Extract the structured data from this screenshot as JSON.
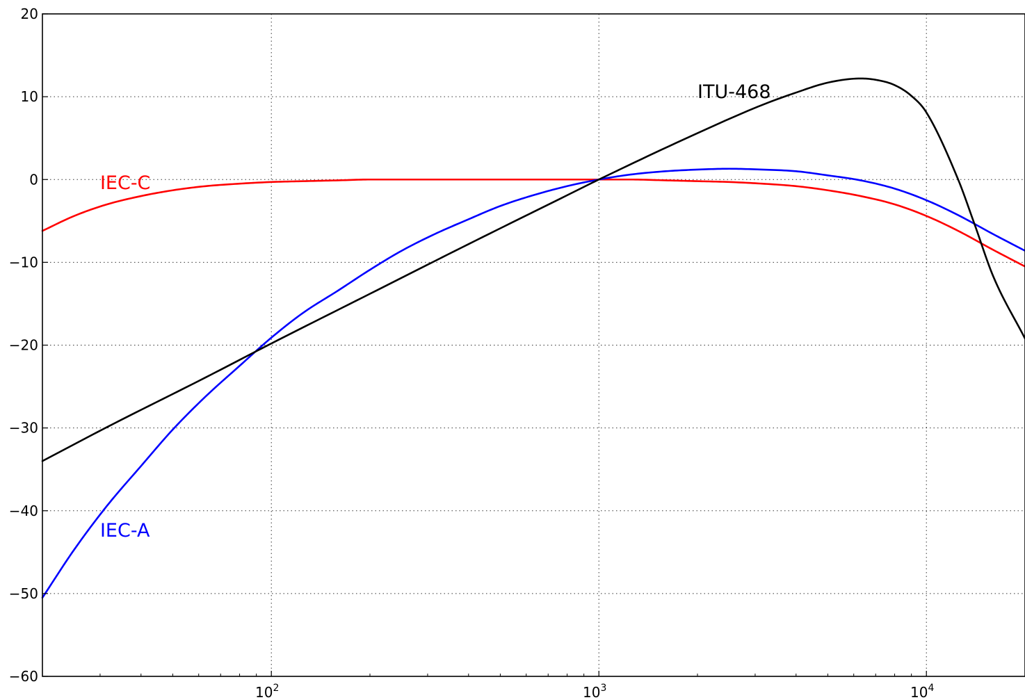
{
  "chart_data": {
    "type": "line",
    "title": "",
    "xlabel": "",
    "ylabel": "",
    "xscale": "log",
    "xlim": [
      20,
      20000
    ],
    "ylim": [
      -60,
      20
    ],
    "grid": true,
    "xticks": [
      {
        "value": 100,
        "base": "10",
        "exp": "2"
      },
      {
        "value": 1000,
        "base": "10",
        "exp": "3"
      },
      {
        "value": 10000,
        "base": "10",
        "exp": "4"
      }
    ],
    "yticks": [
      {
        "value": 20,
        "label": "20"
      },
      {
        "value": 10,
        "label": "10"
      },
      {
        "value": 0,
        "label": "0"
      },
      {
        "value": -10,
        "label": "−10"
      },
      {
        "value": -20,
        "label": "−20"
      },
      {
        "value": -30,
        "label": "−30"
      },
      {
        "value": -40,
        "label": "−40"
      },
      {
        "value": -50,
        "label": "−50"
      },
      {
        "value": -60,
        "label": "−60"
      }
    ],
    "series": [
      {
        "name": "IEC-C",
        "color": "#ff0000",
        "label_pos": [
          30,
          -0.3
        ],
        "points": [
          [
            20,
            -6.2
          ],
          [
            25,
            -4.4
          ],
          [
            31.5,
            -3.0
          ],
          [
            40,
            -2.0
          ],
          [
            50,
            -1.3
          ],
          [
            63,
            -0.8
          ],
          [
            80,
            -0.5
          ],
          [
            100,
            -0.3
          ],
          [
            125,
            -0.2
          ],
          [
            160,
            -0.1
          ],
          [
            200,
            0.0
          ],
          [
            250,
            0.0
          ],
          [
            315,
            0.0
          ],
          [
            400,
            0.0
          ],
          [
            500,
            0.0
          ],
          [
            630,
            0.0
          ],
          [
            800,
            0.0
          ],
          [
            1000,
            0.0
          ],
          [
            1250,
            0.0
          ],
          [
            1600,
            -0.1
          ],
          [
            2000,
            -0.2
          ],
          [
            2500,
            -0.3
          ],
          [
            3150,
            -0.5
          ],
          [
            4000,
            -0.8
          ],
          [
            5000,
            -1.3
          ],
          [
            6300,
            -2.0
          ],
          [
            8000,
            -3.0
          ],
          [
            10000,
            -4.4
          ],
          [
            12500,
            -6.2
          ],
          [
            16000,
            -8.5
          ],
          [
            20000,
            -10.5
          ]
        ]
      },
      {
        "name": "IEC-A",
        "color": "#0000ff",
        "label_pos": [
          30,
          -42.3
        ],
        "points": [
          [
            20,
            -50.5
          ],
          [
            25,
            -44.7
          ],
          [
            31.5,
            -39.4
          ],
          [
            40,
            -34.6
          ],
          [
            50,
            -30.2
          ],
          [
            63,
            -26.2
          ],
          [
            80,
            -22.5
          ],
          [
            100,
            -19.1
          ],
          [
            125,
            -16.1
          ],
          [
            160,
            -13.4
          ],
          [
            200,
            -10.9
          ],
          [
            250,
            -8.6
          ],
          [
            315,
            -6.6
          ],
          [
            400,
            -4.8
          ],
          [
            500,
            -3.2
          ],
          [
            630,
            -1.9
          ],
          [
            800,
            -0.8
          ],
          [
            1000,
            0.0
          ],
          [
            1250,
            0.6
          ],
          [
            1600,
            1.0
          ],
          [
            2000,
            1.2
          ],
          [
            2500,
            1.3
          ],
          [
            3150,
            1.2
          ],
          [
            4000,
            1.0
          ],
          [
            5000,
            0.5
          ],
          [
            6300,
            -0.1
          ],
          [
            8000,
            -1.1
          ],
          [
            10000,
            -2.5
          ],
          [
            12500,
            -4.3
          ],
          [
            16000,
            -6.6
          ],
          [
            20000,
            -8.6
          ]
        ]
      },
      {
        "name": "ITU-468",
        "color": "#000000",
        "label_pos": [
          2000,
          10.7
        ],
        "points": [
          [
            20,
            -34.0
          ],
          [
            31.5,
            -29.9
          ],
          [
            63,
            -23.9
          ],
          [
            100,
            -19.8
          ],
          [
            200,
            -13.8
          ],
          [
            400,
            -7.8
          ],
          [
            800,
            -1.9
          ],
          [
            1000,
            0.0
          ],
          [
            2000,
            5.6
          ],
          [
            3150,
            9.0
          ],
          [
            4000,
            10.5
          ],
          [
            5000,
            11.7
          ],
          [
            6300,
            12.2
          ],
          [
            7100,
            12.0
          ],
          [
            8000,
            11.4
          ],
          [
            9000,
            10.1
          ],
          [
            10000,
            8.1
          ],
          [
            12500,
            0.0
          ],
          [
            14000,
            -5.3
          ],
          [
            16000,
            -11.7
          ],
          [
            20000,
            -19.2
          ]
        ]
      }
    ]
  }
}
